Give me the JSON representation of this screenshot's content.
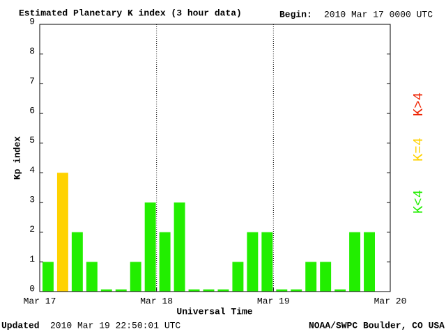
{
  "chart_data": {
    "type": "bar",
    "title": "Estimated Planetary K index (3 hour data)",
    "begin_label": "Begin:",
    "begin": "2010 Mar 17 0000 UTC",
    "ylabel": "Kp index",
    "xlabel": "Universal Time",
    "updated_label": "Updated",
    "updated": "2010 Mar 19 22:50:01 UTC",
    "source": "NOAA/SWPC Boulder, CO USA",
    "xlim": [
      0,
      72
    ],
    "xticks": [
      {
        "value": 0,
        "label": "Mar 17"
      },
      {
        "value": 24,
        "label": "Mar 18"
      },
      {
        "value": 48,
        "label": "Mar 19"
      },
      {
        "value": 72,
        "label": "Mar 20"
      }
    ],
    "ylim": [
      0,
      9
    ],
    "yticks": [
      0,
      1,
      2,
      3,
      4,
      5,
      6,
      7,
      8,
      9
    ],
    "bar_width": 3,
    "x": [
      0,
      3,
      6,
      9,
      12,
      15,
      18,
      21,
      24,
      27,
      30,
      33,
      36,
      39,
      42,
      45,
      48,
      51,
      54,
      57,
      60,
      63,
      66
    ],
    "values": [
      1,
      4,
      2,
      1,
      0,
      0,
      1,
      3,
      2,
      3,
      0,
      0,
      0,
      1,
      2,
      2,
      0,
      0,
      1,
      1,
      0,
      2,
      2
    ],
    "colors": [
      "#22ee00",
      "#ffd200",
      "#22ee00",
      "#22ee00",
      "#22ee00",
      "#22ee00",
      "#22ee00",
      "#22ee00",
      "#22ee00",
      "#22ee00",
      "#22ee00",
      "#22ee00",
      "#22ee00",
      "#22ee00",
      "#22ee00",
      "#22ee00",
      "#22ee00",
      "#22ee00",
      "#22ee00",
      "#22ee00",
      "#22ee00",
      "#22ee00",
      "#22ee00"
    ],
    "legend": [
      {
        "label": "K>4",
        "color": "#ee2200"
      },
      {
        "label": "K=4",
        "color": "#ffd200"
      },
      {
        "label": "K<4",
        "color": "#22ee00"
      }
    ]
  }
}
